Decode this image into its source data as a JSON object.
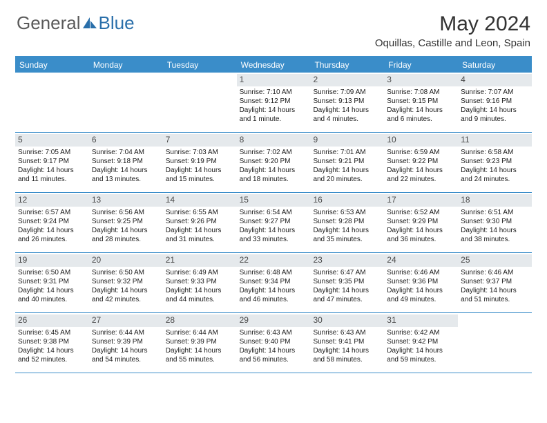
{
  "brand": {
    "part1": "General",
    "part2": "Blue"
  },
  "title": "May 2024",
  "location": "Oquillas, Castille and Leon, Spain",
  "colors": {
    "header_bg": "#3a8dc9",
    "header_text": "#ffffff",
    "daynum_bg": "#e5e9ec",
    "border": "#3a8dc9",
    "logo_gray": "#5a5a5a",
    "logo_blue": "#2a6faa"
  },
  "day_headers": [
    "Sunday",
    "Monday",
    "Tuesday",
    "Wednesday",
    "Thursday",
    "Friday",
    "Saturday"
  ],
  "weeks": [
    [
      {
        "n": "",
        "empty": true
      },
      {
        "n": "",
        "empty": true
      },
      {
        "n": "",
        "empty": true
      },
      {
        "n": "1",
        "sunrise": "7:10 AM",
        "sunset": "9:12 PM",
        "daylight": "14 hours and 1 minute."
      },
      {
        "n": "2",
        "sunrise": "7:09 AM",
        "sunset": "9:13 PM",
        "daylight": "14 hours and 4 minutes."
      },
      {
        "n": "3",
        "sunrise": "7:08 AM",
        "sunset": "9:15 PM",
        "daylight": "14 hours and 6 minutes."
      },
      {
        "n": "4",
        "sunrise": "7:07 AM",
        "sunset": "9:16 PM",
        "daylight": "14 hours and 9 minutes."
      }
    ],
    [
      {
        "n": "5",
        "sunrise": "7:05 AM",
        "sunset": "9:17 PM",
        "daylight": "14 hours and 11 minutes."
      },
      {
        "n": "6",
        "sunrise": "7:04 AM",
        "sunset": "9:18 PM",
        "daylight": "14 hours and 13 minutes."
      },
      {
        "n": "7",
        "sunrise": "7:03 AM",
        "sunset": "9:19 PM",
        "daylight": "14 hours and 15 minutes."
      },
      {
        "n": "8",
        "sunrise": "7:02 AM",
        "sunset": "9:20 PM",
        "daylight": "14 hours and 18 minutes."
      },
      {
        "n": "9",
        "sunrise": "7:01 AM",
        "sunset": "9:21 PM",
        "daylight": "14 hours and 20 minutes."
      },
      {
        "n": "10",
        "sunrise": "6:59 AM",
        "sunset": "9:22 PM",
        "daylight": "14 hours and 22 minutes."
      },
      {
        "n": "11",
        "sunrise": "6:58 AM",
        "sunset": "9:23 PM",
        "daylight": "14 hours and 24 minutes."
      }
    ],
    [
      {
        "n": "12",
        "sunrise": "6:57 AM",
        "sunset": "9:24 PM",
        "daylight": "14 hours and 26 minutes."
      },
      {
        "n": "13",
        "sunrise": "6:56 AM",
        "sunset": "9:25 PM",
        "daylight": "14 hours and 28 minutes."
      },
      {
        "n": "14",
        "sunrise": "6:55 AM",
        "sunset": "9:26 PM",
        "daylight": "14 hours and 31 minutes."
      },
      {
        "n": "15",
        "sunrise": "6:54 AM",
        "sunset": "9:27 PM",
        "daylight": "14 hours and 33 minutes."
      },
      {
        "n": "16",
        "sunrise": "6:53 AM",
        "sunset": "9:28 PM",
        "daylight": "14 hours and 35 minutes."
      },
      {
        "n": "17",
        "sunrise": "6:52 AM",
        "sunset": "9:29 PM",
        "daylight": "14 hours and 36 minutes."
      },
      {
        "n": "18",
        "sunrise": "6:51 AM",
        "sunset": "9:30 PM",
        "daylight": "14 hours and 38 minutes."
      }
    ],
    [
      {
        "n": "19",
        "sunrise": "6:50 AM",
        "sunset": "9:31 PM",
        "daylight": "14 hours and 40 minutes."
      },
      {
        "n": "20",
        "sunrise": "6:50 AM",
        "sunset": "9:32 PM",
        "daylight": "14 hours and 42 minutes."
      },
      {
        "n": "21",
        "sunrise": "6:49 AM",
        "sunset": "9:33 PM",
        "daylight": "14 hours and 44 minutes."
      },
      {
        "n": "22",
        "sunrise": "6:48 AM",
        "sunset": "9:34 PM",
        "daylight": "14 hours and 46 minutes."
      },
      {
        "n": "23",
        "sunrise": "6:47 AM",
        "sunset": "9:35 PM",
        "daylight": "14 hours and 47 minutes."
      },
      {
        "n": "24",
        "sunrise": "6:46 AM",
        "sunset": "9:36 PM",
        "daylight": "14 hours and 49 minutes."
      },
      {
        "n": "25",
        "sunrise": "6:46 AM",
        "sunset": "9:37 PM",
        "daylight": "14 hours and 51 minutes."
      }
    ],
    [
      {
        "n": "26",
        "sunrise": "6:45 AM",
        "sunset": "9:38 PM",
        "daylight": "14 hours and 52 minutes."
      },
      {
        "n": "27",
        "sunrise": "6:44 AM",
        "sunset": "9:39 PM",
        "daylight": "14 hours and 54 minutes."
      },
      {
        "n": "28",
        "sunrise": "6:44 AM",
        "sunset": "9:39 PM",
        "daylight": "14 hours and 55 minutes."
      },
      {
        "n": "29",
        "sunrise": "6:43 AM",
        "sunset": "9:40 PM",
        "daylight": "14 hours and 56 minutes."
      },
      {
        "n": "30",
        "sunrise": "6:43 AM",
        "sunset": "9:41 PM",
        "daylight": "14 hours and 58 minutes."
      },
      {
        "n": "31",
        "sunrise": "6:42 AM",
        "sunset": "9:42 PM",
        "daylight": "14 hours and 59 minutes."
      },
      {
        "n": "",
        "empty": true
      }
    ]
  ]
}
